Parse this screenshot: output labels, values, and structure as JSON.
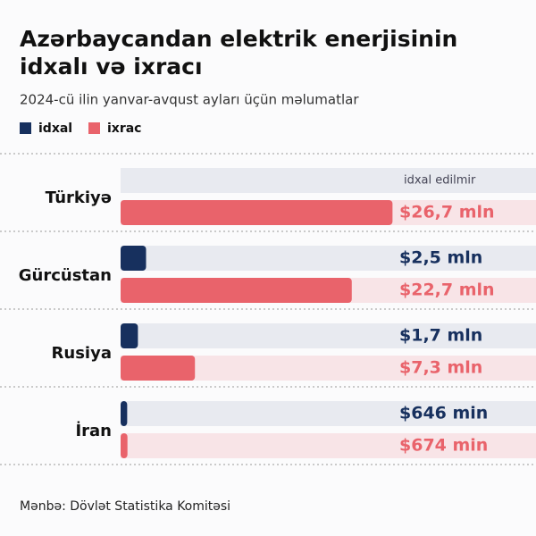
{
  "chart_data": {
    "type": "bar",
    "orientation": "horizontal",
    "title": [
      "Azərbaycandan elektrik enerjisinin",
      "idxalı və ixracı"
    ],
    "subtitle": "2024-cü ilin yanvar-avqust ayları üçün məlumatlar",
    "source": "Mənbə: Dövlət Statistika Komitəsi",
    "categories": [
      "Türkiyə",
      "Gürcüstan",
      "Rusiya",
      "İran"
    ],
    "series": [
      {
        "name": "idxal",
        "color": "#17305e",
        "values": [
          null,
          2.5,
          1.7,
          0.646
        ],
        "value_labels": [
          null,
          "$2,5 mln",
          "$1,7 mln",
          "$646 min"
        ]
      },
      {
        "name": "ixrac",
        "color": "#e9636b",
        "values": [
          26.7,
          22.7,
          7.3,
          0.674
        ],
        "value_labels": [
          "$26,7 mln",
          "$22,7 mln",
          "$7,3 mln",
          "$674 min"
        ]
      }
    ],
    "annotations": [
      {
        "category": 0,
        "series": 0,
        "text": "idxal edilmir"
      }
    ],
    "xlim": [
      0,
      30
    ]
  }
}
